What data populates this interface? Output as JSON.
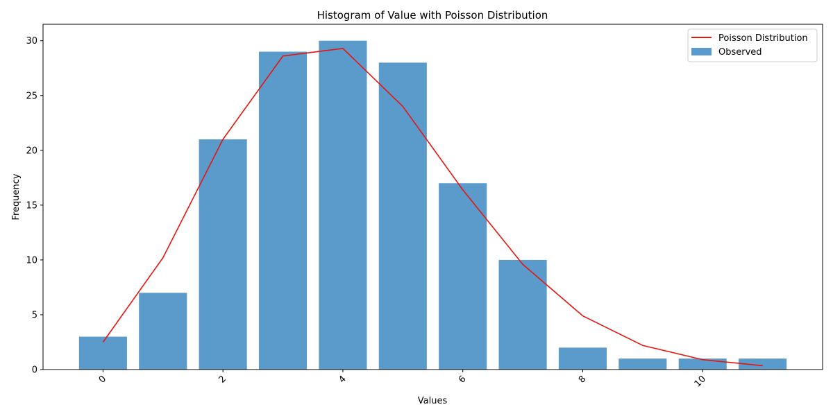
{
  "chart_data": {
    "type": "bar",
    "title": "Histogram of Value with Poisson Distribution",
    "xlabel": "Values",
    "ylabel": "Frequency",
    "xlim": [
      -1.0,
      12.0
    ],
    "ylim": [
      0,
      31.5
    ],
    "x_ticks": [
      0,
      2,
      4,
      6,
      8,
      10
    ],
    "x_tick_labels": [
      "0",
      "2",
      "4",
      "6",
      "8",
      "10"
    ],
    "y_ticks": [
      0,
      5,
      10,
      15,
      20,
      25,
      30
    ],
    "y_tick_labels": [
      "0",
      "5",
      "10",
      "15",
      "20",
      "25",
      "30"
    ],
    "legend_position": "top-right",
    "series": [
      {
        "name": "Observed",
        "kind": "bar",
        "color": "#5b9bcb",
        "x": [
          0,
          1,
          2,
          3,
          4,
          5,
          6,
          7,
          8,
          9,
          10,
          11
        ],
        "values": [
          3,
          7,
          21,
          29,
          30,
          28,
          17,
          10,
          2,
          1,
          1,
          1
        ]
      },
      {
        "name": "Poisson Distribution",
        "kind": "line",
        "color": "#e8140e",
        "x": [
          0,
          1,
          2,
          3,
          4,
          5,
          6,
          7,
          8,
          9,
          10,
          11
        ],
        "values": [
          2.5,
          10.2,
          21.0,
          28.6,
          29.3,
          24.0,
          16.4,
          9.6,
          4.9,
          2.2,
          0.9,
          0.35
        ]
      }
    ]
  }
}
